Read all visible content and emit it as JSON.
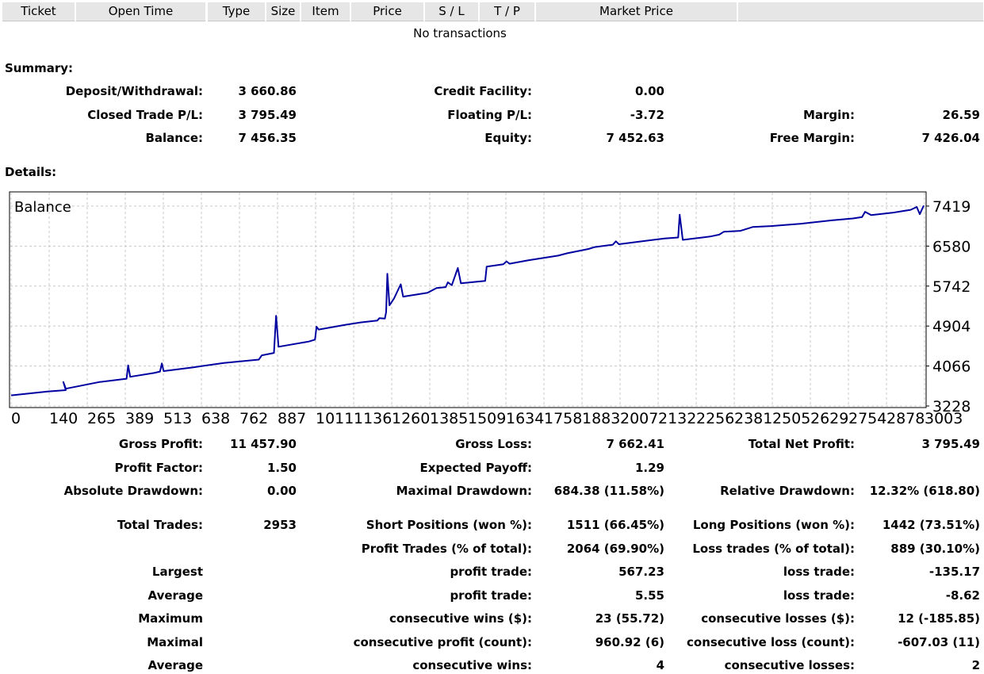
{
  "columns": [
    "Ticket",
    "Open Time",
    "Type",
    "Size",
    "Item",
    "Price",
    "S / L",
    "T / P",
    "Market Price",
    ""
  ],
  "no_transactions": "No transactions",
  "summary": {
    "title": "Summary:",
    "rows": [
      [
        {
          "label": "Deposit/Withdrawal:",
          "value": "3 660.86"
        },
        {
          "label": "Credit Facility:",
          "value": "0.00"
        },
        {
          "label": "",
          "value": ""
        }
      ],
      [
        {
          "label": "Closed Trade P/L:",
          "value": "3 795.49"
        },
        {
          "label": "Floating P/L:",
          "value": "-3.72"
        },
        {
          "label": "Margin:",
          "value": "26.59"
        }
      ],
      [
        {
          "label": "Balance:",
          "value": "7 456.35"
        },
        {
          "label": "Equity:",
          "value": "7 452.63"
        },
        {
          "label": "Free Margin:",
          "value": "7 426.04"
        }
      ]
    ]
  },
  "details": {
    "title": "Details:",
    "rows": [
      [
        {
          "label": "Gross Profit:",
          "value": "11 457.90"
        },
        {
          "label": "Gross Loss:",
          "value": "7 662.41"
        },
        {
          "label": "Total Net Profit:",
          "value": "3 795.49"
        }
      ],
      [
        {
          "label": "Profit Factor:",
          "value": "1.50"
        },
        {
          "label": "Expected Payoff:",
          "value": "1.29"
        },
        {
          "label": "",
          "value": ""
        }
      ],
      [
        {
          "label": "Absolute Drawdown:",
          "value": "0.00"
        },
        {
          "label": "Maximal Drawdown:",
          "value": "684.38 (11.58%)"
        },
        {
          "label": "Relative Drawdown:",
          "value": "12.32% (618.80)"
        }
      ],
      [
        {
          "label": "Total Trades:",
          "value": "2953"
        },
        {
          "label": "Short Positions (won %):",
          "value": "1511 (66.45%)"
        },
        {
          "label": "Long Positions (won %):",
          "value": "1442 (73.51%)"
        }
      ],
      [
        {
          "label": "",
          "value": ""
        },
        {
          "label": "Profit Trades (% of total):",
          "value": "2064 (69.90%)"
        },
        {
          "label": "Loss trades (% of total):",
          "value": "889 (30.10%)"
        }
      ],
      [
        {
          "label": "Largest",
          "value": ""
        },
        {
          "label": "profit trade:",
          "value": "567.23"
        },
        {
          "label": "loss trade:",
          "value": "-135.17"
        }
      ],
      [
        {
          "label": "Average",
          "value": ""
        },
        {
          "label": "profit trade:",
          "value": "5.55"
        },
        {
          "label": "loss trade:",
          "value": "-8.62"
        }
      ],
      [
        {
          "label": "Maximum",
          "value": ""
        },
        {
          "label": "consecutive wins ($):",
          "value": "23 (55.72)"
        },
        {
          "label": "consecutive losses ($):",
          "value": "12 (-185.85)"
        }
      ],
      [
        {
          "label": "Maximal",
          "value": ""
        },
        {
          "label": "consecutive profit (count):",
          "value": "960.92 (6)"
        },
        {
          "label": "consecutive loss (count):",
          "value": "-607.03 (11)"
        }
      ],
      [
        {
          "label": "Average",
          "value": ""
        },
        {
          "label": "consecutive wins:",
          "value": "4"
        },
        {
          "label": "consecutive losses:",
          "value": "2"
        }
      ]
    ]
  },
  "chart_data": {
    "type": "line",
    "title": "Balance",
    "line_color": "#0000a0",
    "grid": true,
    "ylim": [
      3228,
      7650
    ],
    "y_ticks": [
      3228,
      4066,
      4904,
      5742,
      6580,
      7419
    ],
    "xlim": [
      0,
      3003
    ],
    "x_ticks": [
      "0",
      "140",
      "265",
      "389",
      "513",
      "638",
      "762",
      "887",
      "1011",
      "1136",
      "1260",
      "1385",
      "1509",
      "1634",
      "1758",
      "1883",
      "2007",
      "2132",
      "2256",
      "2381",
      "2505",
      "2629",
      "2754",
      "2878",
      "3003"
    ],
    "series": [
      {
        "name": "",
        "points": [
          [
            0,
            3450
          ],
          [
            120,
            3530
          ],
          [
            180,
            3560
          ],
          [
            172,
            3730
          ],
          [
            180,
            3590
          ],
          [
            290,
            3730
          ],
          [
            380,
            3800
          ],
          [
            385,
            4080
          ],
          [
            392,
            3840
          ],
          [
            470,
            3920
          ],
          [
            490,
            3950
          ],
          [
            496,
            4120
          ],
          [
            502,
            3960
          ],
          [
            600,
            4040
          ],
          [
            700,
            4130
          ],
          [
            815,
            4200
          ],
          [
            825,
            4290
          ],
          [
            865,
            4340
          ],
          [
            872,
            5120
          ],
          [
            880,
            4470
          ],
          [
            980,
            4580
          ],
          [
            1000,
            4620
          ],
          [
            1005,
            4890
          ],
          [
            1012,
            4830
          ],
          [
            1100,
            4930
          ],
          [
            1150,
            4980
          ],
          [
            1205,
            5020
          ],
          [
            1212,
            5070
          ],
          [
            1230,
            5060
          ],
          [
            1234,
            5200
          ],
          [
            1238,
            6000
          ],
          [
            1245,
            5340
          ],
          [
            1260,
            5480
          ],
          [
            1282,
            5780
          ],
          [
            1290,
            5520
          ],
          [
            1370,
            5600
          ],
          [
            1400,
            5700
          ],
          [
            1430,
            5720
          ],
          [
            1437,
            5820
          ],
          [
            1450,
            5760
          ],
          [
            1470,
            6120
          ],
          [
            1480,
            5800
          ],
          [
            1560,
            5850
          ],
          [
            1565,
            6150
          ],
          [
            1620,
            6200
          ],
          [
            1630,
            6260
          ],
          [
            1640,
            6210
          ],
          [
            1700,
            6280
          ],
          [
            1800,
            6380
          ],
          [
            1830,
            6430
          ],
          [
            1900,
            6520
          ],
          [
            1920,
            6560
          ],
          [
            1980,
            6610
          ],
          [
            1990,
            6680
          ],
          [
            2000,
            6620
          ],
          [
            2100,
            6700
          ],
          [
            2150,
            6740
          ],
          [
            2195,
            6760
          ],
          [
            2200,
            7240
          ],
          [
            2210,
            6710
          ],
          [
            2300,
            6780
          ],
          [
            2330,
            6820
          ],
          [
            2345,
            6880
          ],
          [
            2400,
            6900
          ],
          [
            2440,
            6980
          ],
          [
            2500,
            7000
          ],
          [
            2600,
            7050
          ],
          [
            2700,
            7120
          ],
          [
            2770,
            7160
          ],
          [
            2800,
            7190
          ],
          [
            2810,
            7300
          ],
          [
            2830,
            7230
          ],
          [
            2900,
            7280
          ],
          [
            2960,
            7340
          ],
          [
            2980,
            7400
          ],
          [
            2990,
            7250
          ],
          [
            3003,
            7430
          ]
        ]
      }
    ]
  }
}
